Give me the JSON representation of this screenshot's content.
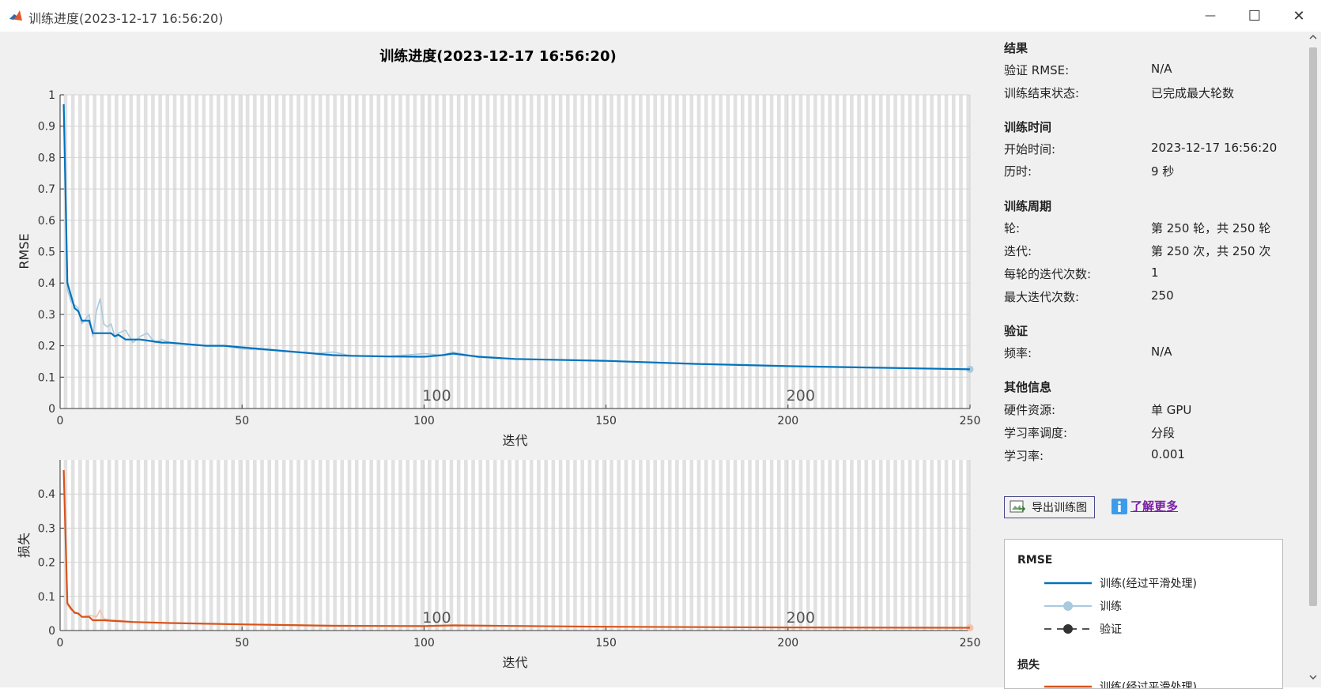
{
  "window": {
    "title": "训练进度(2023-12-17 16:56:20)",
    "minimize_glyph": "—",
    "maximize_glyph": "☐",
    "close_glyph": "✕"
  },
  "plot": {
    "title": "训练进度(2023-12-17 16:56:20)"
  },
  "chart_data": [
    {
      "type": "line",
      "ylabel": "RMSE",
      "xlabel": "迭代",
      "xlim": [
        0,
        250
      ],
      "ylim": [
        0,
        1
      ],
      "xticks": [
        "0",
        "50",
        "100",
        "150",
        "200",
        "250"
      ],
      "yticks": [
        "0",
        "0.1",
        "0.2",
        "0.3",
        "0.4",
        "0.5",
        "0.6",
        "0.7",
        "0.8",
        "0.9",
        "1"
      ],
      "epoch_marks": [
        "100",
        "200"
      ],
      "series": [
        {
          "name": "训练(经过平滑处理)",
          "color": "#0072bd",
          "x": [
            1,
            2,
            3,
            4,
            5,
            6,
            8,
            9,
            10,
            12,
            13,
            14,
            15,
            16,
            18,
            20,
            22,
            25,
            28,
            30,
            35,
            40,
            45,
            50,
            60,
            70,
            75,
            80,
            90,
            100,
            105,
            108,
            115,
            125,
            150,
            175,
            200,
            225,
            250
          ],
          "y": [
            0.97,
            0.4,
            0.36,
            0.32,
            0.31,
            0.28,
            0.28,
            0.24,
            0.24,
            0.24,
            0.24,
            0.24,
            0.23,
            0.235,
            0.22,
            0.22,
            0.22,
            0.215,
            0.21,
            0.21,
            0.205,
            0.2,
            0.2,
            0.195,
            0.185,
            0.175,
            0.17,
            0.168,
            0.166,
            0.165,
            0.17,
            0.175,
            0.165,
            0.158,
            0.152,
            0.142,
            0.135,
            0.13,
            0.125
          ]
        },
        {
          "name": "训练",
          "color": "#a9c9de",
          "x": [
            1,
            2,
            3,
            4,
            5,
            6,
            8,
            9,
            10,
            11,
            12,
            13,
            14,
            15,
            16,
            18,
            20,
            22,
            24,
            26,
            28,
            30,
            35,
            40,
            45,
            50,
            60,
            70,
            75,
            80,
            90,
            100,
            105,
            108,
            115,
            125,
            150,
            175,
            200,
            225,
            250
          ],
          "y": [
            0.97,
            0.38,
            0.34,
            0.33,
            0.32,
            0.27,
            0.3,
            0.23,
            0.31,
            0.35,
            0.27,
            0.26,
            0.27,
            0.23,
            0.24,
            0.25,
            0.21,
            0.23,
            0.24,
            0.21,
            0.22,
            0.21,
            0.205,
            0.2,
            0.2,
            0.19,
            0.185,
            0.175,
            0.18,
            0.168,
            0.166,
            0.175,
            0.17,
            0.18,
            0.163,
            0.158,
            0.152,
            0.142,
            0.135,
            0.13,
            0.125
          ]
        }
      ]
    },
    {
      "type": "line",
      "ylabel": "损失",
      "xlabel": "迭代",
      "xlim": [
        0,
        250
      ],
      "ylim": [
        0,
        0.5
      ],
      "xticks": [
        "0",
        "50",
        "100",
        "150",
        "200",
        "250"
      ],
      "yticks": [
        "0",
        "0.1",
        "0.2",
        "0.3",
        "0.4"
      ],
      "epoch_marks": [
        "100",
        "200"
      ],
      "series": [
        {
          "name": "训练(经过平滑处理)",
          "color": "#d95319",
          "x": [
            1,
            2,
            3,
            4,
            5,
            6,
            8,
            9,
            10,
            12,
            15,
            20,
            30,
            50,
            75,
            100,
            108,
            150,
            200,
            250
          ],
          "y": [
            0.47,
            0.08,
            0.065,
            0.052,
            0.05,
            0.04,
            0.04,
            0.03,
            0.03,
            0.03,
            0.028,
            0.025,
            0.022,
            0.018,
            0.014,
            0.013,
            0.015,
            0.011,
            0.009,
            0.008
          ]
        },
        {
          "name": "训练",
          "color": "#f2c2ac",
          "x": [
            1,
            2,
            3,
            4,
            6,
            8,
            10,
            11,
            12,
            14,
            16,
            20,
            30,
            50,
            75,
            100,
            108,
            150,
            200,
            250
          ],
          "y": [
            0.47,
            0.075,
            0.06,
            0.055,
            0.04,
            0.045,
            0.04,
            0.06,
            0.035,
            0.03,
            0.03,
            0.025,
            0.022,
            0.018,
            0.015,
            0.014,
            0.016,
            0.011,
            0.009,
            0.008
          ]
        }
      ]
    }
  ],
  "sidebar": {
    "results": {
      "title": "结果",
      "rows": [
        {
          "label": "验证 RMSE:",
          "value": "N/A"
        },
        {
          "label": "训练结束状态:",
          "value": "已完成最大轮数"
        }
      ]
    },
    "time": {
      "title": "训练时间",
      "rows": [
        {
          "label": "开始时间:",
          "value": "2023-12-17 16:56:20"
        },
        {
          "label": "历时:",
          "value": "9 秒"
        }
      ]
    },
    "cycle": {
      "title": "训练周期",
      "rows": [
        {
          "label": "轮:",
          "value": "第 250 轮，共 250 轮"
        },
        {
          "label": "迭代:",
          "value": "第 250 次，共 250 次"
        },
        {
          "label": "每轮的迭代次数:",
          "value": "1"
        },
        {
          "label": "最大迭代次数:",
          "value": "250"
        }
      ]
    },
    "validation": {
      "title": "验证",
      "rows": [
        {
          "label": "频率:",
          "value": "N/A"
        }
      ]
    },
    "other": {
      "title": "其他信息",
      "rows": [
        {
          "label": "硬件资源:",
          "value": "单 GPU"
        },
        {
          "label": "学习率调度:",
          "value": "分段"
        },
        {
          "label": "学习率:",
          "value": "0.001"
        }
      ]
    },
    "export_label": "导出训练图",
    "learn_more": "了解更多"
  },
  "legend": {
    "rmse_title": "RMSE",
    "loss_title": "损失",
    "items": [
      {
        "label": "训练(经过平滑处理)"
      },
      {
        "label": "训练"
      },
      {
        "label": "验证"
      }
    ],
    "loss_items": [
      {
        "label": "训练(经过平滑处理)"
      }
    ]
  },
  "colors": {
    "rmse_smooth": "#0072bd",
    "rmse_raw": "#a9c9de",
    "loss_smooth": "#d95319",
    "loss_raw": "#f2c2ac",
    "validation": "#333333",
    "link": "#7a1fa2"
  }
}
